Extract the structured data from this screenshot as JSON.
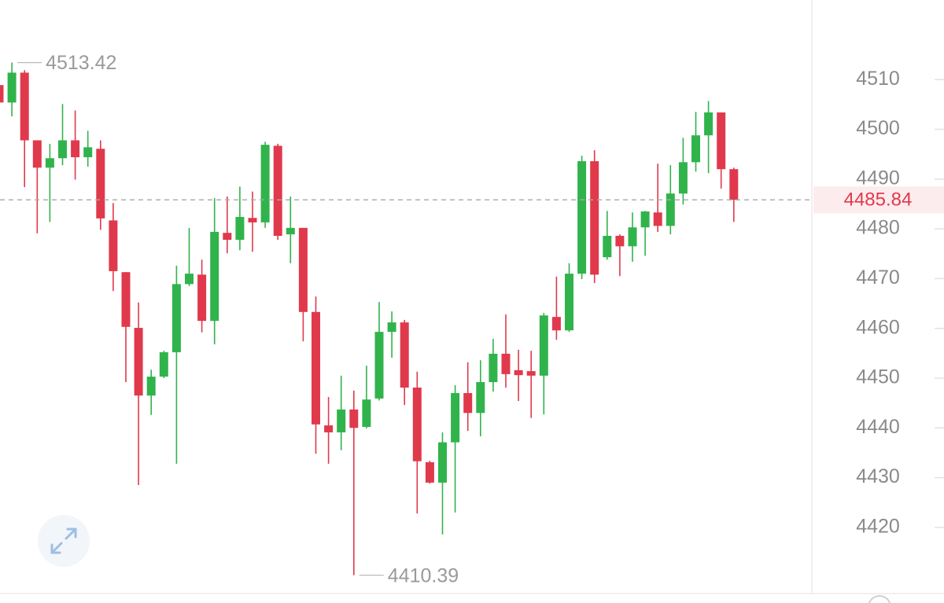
{
  "chart_data": {
    "type": "candlestick",
    "up_color": "#31b34c",
    "down_color": "#e0394c",
    "open": [
      4508.9,
      4505.4,
      4511.4,
      4497.8,
      4492.3,
      4494.2,
      4497.8,
      4494.4,
      4496.1,
      4481.7,
      4471.3,
      4460.1,
      4446.5,
      4450.3,
      4455.2,
      4468.9,
      4470.8,
      4461.5,
      4479.2,
      4477.8,
      4482.2,
      4481.3,
      4496.7,
      4478.9,
      4480.2,
      4463.3,
      4440.5,
      4439.1,
      4443.7,
      4440.2,
      4445.9,
      4459.3,
      4461.2,
      4448.1,
      4433.1,
      4429.0,
      4437.1,
      4447.0,
      4443.0,
      4449.2,
      4454.9,
      4451.6,
      4451.4,
      4450.5,
      4462.3,
      4459.6,
      4471.0,
      4493.6,
      4474.3,
      4478.6,
      4476.5,
      4480.3,
      4483.3,
      4480.6,
      4487.1,
      4493.4,
      4498.8,
      4503.4,
      4492.0
    ],
    "high": [
      4512.8,
      4513.42,
      4511.9,
      4497.8,
      4497.1,
      4505.1,
      4503.8,
      4499.7,
      4497.8,
      4485.2,
      4471.3,
      4465.2,
      4451.7,
      4455.5,
      4472.6,
      4480.2,
      4473.8,
      4486.2,
      4486.5,
      4488.5,
      4487.5,
      4497.5,
      4497.1,
      4486.5,
      4480.2,
      4466.4,
      4446.2,
      4450.5,
      4447.5,
      4452.5,
      4465.3,
      4463.4,
      4461.7,
      4451.3,
      4433.4,
      4439.1,
      4448.6,
      4453.2,
      4453.6,
      4457.9,
      4462.8,
      4455.7,
      4455.5,
      4463.1,
      4470.4,
      4473.1,
      4494.7,
      4495.8,
      4483.6,
      4478.9,
      4483.3,
      4483.6,
      4493.1,
      4492.8,
      4498.3,
      4503.5,
      4505.7,
      4503.4,
      4492.3
    ],
    "low": [
      4499.9,
      4502.6,
      4488.4,
      4479.1,
      4481.4,
      4492.8,
      4489.9,
      4492.5,
      4479.8,
      4467.5,
      4449.2,
      4428.5,
      4442.6,
      4450.0,
      4432.8,
      4468.5,
      4459.2,
      4456.8,
      4475.1,
      4475.7,
      4475.4,
      4480.2,
      4477.8,
      4473.1,
      4457.4,
      4434.8,
      4432.8,
      4435.5,
      4410.39,
      4439.9,
      4445.5,
      4454.1,
      4444.6,
      4422.8,
      4428.8,
      4418.6,
      4423.0,
      4439.4,
      4438.3,
      4447.3,
      4448.1,
      4445.4,
      4442.0,
      4442.7,
      4457.7,
      4459.3,
      4469.9,
      4469.1,
      4473.8,
      4470.5,
      4473.4,
      4474.6,
      4479.4,
      4478.9,
      4484.9,
      4491.5,
      4491.2,
      4488.1,
      4481.4
    ],
    "close": [
      4505.4,
      4511.4,
      4497.8,
      4492.3,
      4494.2,
      4497.8,
      4494.4,
      4496.4,
      4482.1,
      4471.5,
      4460.3,
      4446.5,
      4450.3,
      4455.2,
      4468.9,
      4471.0,
      4461.5,
      4479.4,
      4477.8,
      4482.4,
      4481.3,
      4496.9,
      4478.6,
      4480.2,
      4463.3,
      4440.7,
      4439.1,
      4443.7,
      4440.0,
      4445.7,
      4459.3,
      4461.2,
      4448.1,
      4433.3,
      4429.0,
      4437.1,
      4447.0,
      4443.0,
      4449.2,
      4454.9,
      4450.8,
      4450.6,
      4450.5,
      4462.6,
      4459.6,
      4471.0,
      4493.6,
      4470.8,
      4478.6,
      4476.5,
      4480.3,
      4483.5,
      4480.6,
      4487.1,
      4493.4,
      4498.8,
      4503.4,
      4492.0,
      4485.84
    ],
    "ylim": [
      4406.7,
      4526.0
    ],
    "yticks": [
      4420,
      4430,
      4440,
      4450,
      4460,
      4470,
      4480,
      4490,
      4500,
      4510
    ],
    "last_price_line": true
  }
}
